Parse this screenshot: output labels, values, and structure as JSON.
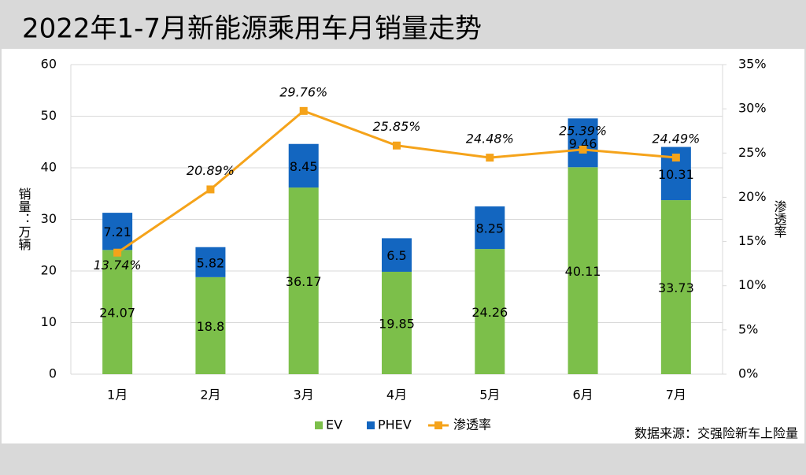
{
  "chart_data": {
    "type": "bar",
    "title": "2022年1-7月新能源乘用车月销量走势",
    "y_label": "销量：万辆",
    "y2_label": "渗透率",
    "source": "数据来源：交强险新车上险量",
    "categories": [
      "1月",
      "2月",
      "3月",
      "4月",
      "5月",
      "6月",
      "7月"
    ],
    "stacked": true,
    "grid": true,
    "legend": "bottom",
    "series": [
      {
        "name": "EV",
        "color": "#7cbf4a",
        "values": [
          24.07,
          18.8,
          36.17,
          19.85,
          24.26,
          40.11,
          33.73
        ]
      },
      {
        "name": "PHEV",
        "color": "#1366c0",
        "values": [
          7.21,
          5.82,
          8.45,
          6.5,
          8.25,
          9.46,
          10.31
        ]
      },
      {
        "name": "渗透率",
        "type": "line",
        "axis": "y2",
        "color": "#f5a31a",
        "values": [
          13.74,
          20.89,
          29.76,
          25.85,
          24.48,
          25.39,
          24.49
        ],
        "value_labels": [
          "13.74%",
          "20.89%",
          "29.76%",
          "25.85%",
          "24.48%",
          "25.39%",
          "24.49%"
        ]
      }
    ],
    "ylim": [
      0,
      60
    ],
    "yticks": [
      0,
      10,
      20,
      30,
      40,
      50,
      60
    ],
    "y2lim": [
      0,
      35
    ],
    "y2ticks": [
      {
        "value": 0,
        "label": "0%"
      },
      {
        "value": 5,
        "label": "5%"
      },
      {
        "value": 10,
        "label": "10%"
      },
      {
        "value": 15,
        "label": "15%"
      },
      {
        "value": 20,
        "label": "20%"
      },
      {
        "value": 25,
        "label": "25%"
      },
      {
        "value": 30,
        "label": "30%"
      },
      {
        "value": 35,
        "label": "35%"
      }
    ]
  }
}
